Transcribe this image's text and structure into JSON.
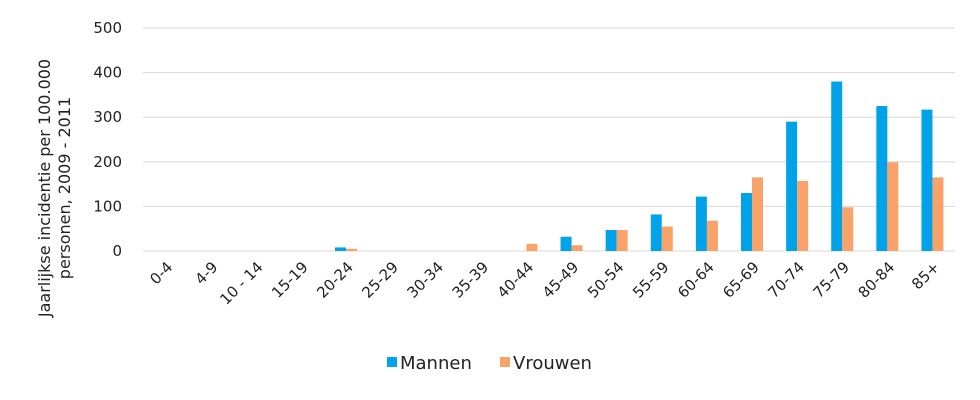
{
  "chart_data": {
    "type": "bar",
    "categories": [
      "0-4",
      "4-9",
      "10 - 14",
      "15-19",
      "20-24",
      "25-29",
      "30-34",
      "35-39",
      "40-44",
      "45-49",
      "50-54",
      "55-59",
      "60-64",
      "65-69",
      "70-74",
      "75-79",
      "80-84",
      "85+"
    ],
    "series": [
      {
        "name": "Mannen",
        "color": "#00a2e8",
        "values": [
          0,
          0,
          0,
          0,
          8,
          0,
          0,
          0,
          0,
          32,
          47,
          82,
          122,
          130,
          290,
          380,
          325,
          317
        ]
      },
      {
        "name": "Vrouwen",
        "color": "#f9a36b",
        "values": [
          0,
          0,
          0,
          0,
          5,
          0,
          0,
          0,
          16,
          13,
          47,
          55,
          68,
          165,
          157,
          98,
          199,
          165
        ]
      }
    ],
    "ylabel_lines": [
      "Jaarlijkse incidentie per 100.000",
      "personen, 2009 - 2011"
    ],
    "yticks": [
      0,
      100,
      200,
      300,
      400,
      500
    ],
    "ylim": [
      0,
      500
    ],
    "grid": true,
    "legend_position": "bottom-center"
  }
}
